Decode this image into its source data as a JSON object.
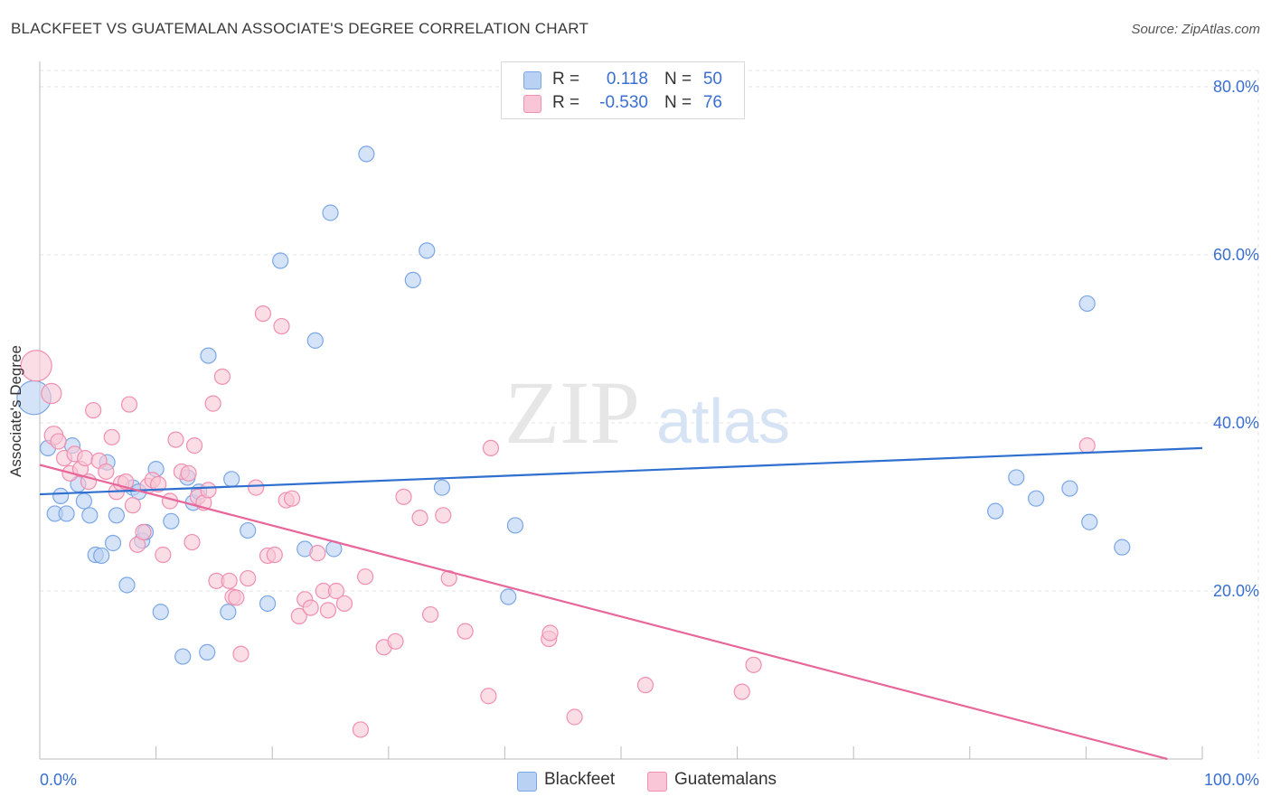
{
  "title": "BLACKFEET VS GUATEMALAN ASSOCIATE'S DEGREE CORRELATION CHART",
  "source": "Source: ZipAtlas.com",
  "watermark": {
    "zip": "ZIP",
    "atlas": "atlas"
  },
  "legend_top": {
    "rows": [
      {
        "r_label": "R =",
        "r_value": "0.118",
        "n_label": "N =",
        "n_value": "50",
        "color": "#7aa7e6",
        "fill": "#b9d1f3"
      },
      {
        "r_label": "R =",
        "r_value": "-0.530",
        "n_label": "N =",
        "n_value": "76",
        "color": "#f08fb0",
        "fill": "#f8c6d6"
      }
    ]
  },
  "legend_bottom": [
    {
      "label": "Blackfeet",
      "fill": "#b9d1f3",
      "color": "#7aa7e6"
    },
    {
      "label": "Guatemalans",
      "fill": "#f8c6d6",
      "color": "#f08fb0"
    }
  ],
  "colors": {
    "blue_point_fill": "#b9d1f3",
    "blue_point_stroke": "#7aa7e6",
    "blue_line": "#2f6fd0",
    "pink_point_fill": "#f8c6d6",
    "pink_point_stroke": "#f08fb0",
    "pink_line": "#e8679a",
    "axis_label": "#3a6fd0",
    "grid": "#e3e3e3"
  },
  "chart_data": {
    "type": "scatter",
    "title": "BLACKFEET VS GUATEMALAN ASSOCIATE'S DEGREE CORRELATION CHART",
    "xlabel": "",
    "ylabel": "Associate's Degree",
    "xlim": [
      0,
      100
    ],
    "ylim": [
      0,
      83
    ],
    "x_tick_labels": [
      "0.0%",
      "100.0%"
    ],
    "y_ticks": [
      20,
      40,
      60,
      80
    ],
    "y_tick_labels": [
      "20.0%",
      "40.0%",
      "60.0%",
      "80.0%"
    ],
    "grid": true,
    "legend_position": "top-center",
    "series": [
      {
        "name": "Blackfeet",
        "r": 0.118,
        "n": 50,
        "trend": {
          "x": [
            0,
            100
          ],
          "y": [
            31.5,
            37.0
          ]
        },
        "points": [
          [
            -0.5,
            43.0,
            2.2
          ],
          [
            0.7,
            37.0,
            1
          ],
          [
            1.3,
            29.2,
            1
          ],
          [
            1.8,
            31.3,
            1
          ],
          [
            2.3,
            29.2,
            1
          ],
          [
            2.8,
            37.3,
            1
          ],
          [
            3.3,
            32.7,
            1
          ],
          [
            3.8,
            30.7,
            1
          ],
          [
            4.3,
            29.0,
            1
          ],
          [
            4.8,
            24.3,
            1
          ],
          [
            5.3,
            24.2,
            1
          ],
          [
            5.8,
            35.3,
            1
          ],
          [
            6.3,
            25.7,
            1
          ],
          [
            6.6,
            29.0,
            1
          ],
          [
            7.5,
            20.7,
            1
          ],
          [
            8.0,
            32.3,
            1
          ],
          [
            8.5,
            31.8,
            1
          ],
          [
            8.8,
            26.0,
            1
          ],
          [
            9.1,
            27.0,
            1
          ],
          [
            10.0,
            34.5,
            1
          ],
          [
            10.4,
            17.5,
            1
          ],
          [
            11.3,
            28.3,
            1
          ],
          [
            12.3,
            12.2,
            1
          ],
          [
            12.7,
            33.5,
            1
          ],
          [
            13.2,
            30.5,
            1
          ],
          [
            13.7,
            31.8,
            1
          ],
          [
            14.4,
            12.7,
            1
          ],
          [
            14.5,
            48.0,
            1
          ],
          [
            16.2,
            17.5,
            1
          ],
          [
            16.5,
            33.3,
            1
          ],
          [
            17.9,
            27.2,
            1
          ],
          [
            19.6,
            18.5,
            1
          ],
          [
            20.7,
            59.3,
            1
          ],
          [
            22.8,
            25.0,
            1
          ],
          [
            23.7,
            49.8,
            1
          ],
          [
            25.0,
            65.0,
            1
          ],
          [
            25.3,
            25.0,
            1
          ],
          [
            28.1,
            72.0,
            1
          ],
          [
            32.1,
            57.0,
            1
          ],
          [
            33.3,
            60.5,
            1
          ],
          [
            34.6,
            32.3,
            1
          ],
          [
            40.3,
            19.3,
            1
          ],
          [
            40.9,
            27.8,
            1
          ],
          [
            82.2,
            29.5,
            1
          ],
          [
            84.0,
            33.5,
            1
          ],
          [
            85.7,
            31.0,
            1
          ],
          [
            88.6,
            32.2,
            1
          ],
          [
            90.1,
            54.2,
            1
          ],
          [
            90.3,
            28.2,
            1
          ],
          [
            93.1,
            25.2,
            1
          ]
        ]
      },
      {
        "name": "Guatemalans",
        "r": -0.53,
        "n": 76,
        "trend": {
          "x": [
            0,
            97
          ],
          "y": [
            35.0,
            0
          ]
        },
        "points": [
          [
            -0.3,
            46.8,
            2
          ],
          [
            1.0,
            43.5,
            1.3
          ],
          [
            1.2,
            38.5,
            1.2
          ],
          [
            1.6,
            37.8,
            1
          ],
          [
            2.1,
            35.8,
            1
          ],
          [
            2.6,
            34.0,
            1
          ],
          [
            3.0,
            36.3,
            1
          ],
          [
            3.5,
            34.5,
            1
          ],
          [
            3.9,
            35.8,
            1
          ],
          [
            4.2,
            33.0,
            1
          ],
          [
            4.6,
            41.5,
            1
          ],
          [
            5.1,
            35.5,
            1
          ],
          [
            5.7,
            34.2,
            1
          ],
          [
            6.2,
            38.3,
            1
          ],
          [
            6.6,
            31.8,
            1
          ],
          [
            7.0,
            32.8,
            1
          ],
          [
            7.4,
            33.0,
            1
          ],
          [
            7.7,
            42.2,
            1
          ],
          [
            8.0,
            30.2,
            1
          ],
          [
            8.4,
            25.5,
            1
          ],
          [
            8.9,
            27.0,
            1
          ],
          [
            9.3,
            32.5,
            1
          ],
          [
            9.7,
            33.2,
            1
          ],
          [
            10.2,
            32.7,
            1
          ],
          [
            10.6,
            24.3,
            1
          ],
          [
            11.2,
            30.7,
            1
          ],
          [
            11.7,
            38.0,
            1
          ],
          [
            12.2,
            34.2,
            1
          ],
          [
            12.8,
            34.0,
            1
          ],
          [
            13.1,
            25.8,
            1
          ],
          [
            13.3,
            37.3,
            1
          ],
          [
            13.6,
            31.2,
            1
          ],
          [
            14.1,
            30.5,
            1
          ],
          [
            14.5,
            32.0,
            1
          ],
          [
            14.9,
            42.3,
            1
          ],
          [
            15.2,
            21.2,
            1
          ],
          [
            15.7,
            45.5,
            1
          ],
          [
            16.3,
            21.2,
            1
          ],
          [
            16.6,
            19.3,
            1
          ],
          [
            16.9,
            19.2,
            1
          ],
          [
            17.3,
            12.5,
            1
          ],
          [
            17.9,
            21.5,
            1
          ],
          [
            18.6,
            32.3,
            1
          ],
          [
            19.2,
            53.0,
            1
          ],
          [
            19.6,
            24.2,
            1
          ],
          [
            20.2,
            24.3,
            1
          ],
          [
            20.8,
            51.5,
            1
          ],
          [
            21.2,
            30.8,
            1
          ],
          [
            21.7,
            31.0,
            1
          ],
          [
            22.3,
            17.0,
            1
          ],
          [
            22.8,
            19.0,
            1
          ],
          [
            23.3,
            18.0,
            1
          ],
          [
            23.9,
            24.5,
            1
          ],
          [
            24.4,
            20.0,
            1
          ],
          [
            24.8,
            17.7,
            1
          ],
          [
            25.5,
            20.0,
            1
          ],
          [
            26.2,
            18.5,
            1
          ],
          [
            27.6,
            3.5,
            1
          ],
          [
            28.0,
            21.7,
            1
          ],
          [
            29.6,
            13.3,
            1
          ],
          [
            30.6,
            14.0,
            1
          ],
          [
            31.3,
            31.2,
            1
          ],
          [
            32.7,
            28.7,
            1
          ],
          [
            33.6,
            17.2,
            1
          ],
          [
            34.7,
            29.0,
            1
          ],
          [
            35.2,
            21.5,
            1
          ],
          [
            36.6,
            15.2,
            1
          ],
          [
            38.6,
            7.5,
            1
          ],
          [
            38.8,
            37.0,
            1
          ],
          [
            43.8,
            14.3,
            1
          ],
          [
            43.9,
            15.0,
            1
          ],
          [
            46.0,
            5.0,
            1
          ],
          [
            52.1,
            8.8,
            1
          ],
          [
            60.4,
            8.0,
            1
          ],
          [
            61.4,
            11.2,
            1
          ],
          [
            90.1,
            37.3,
            1
          ]
        ]
      }
    ]
  }
}
